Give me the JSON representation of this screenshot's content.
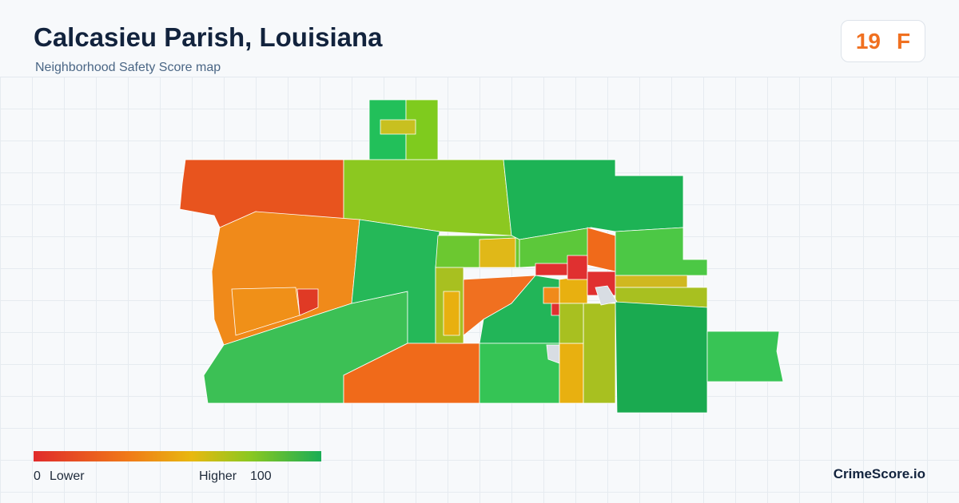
{
  "header": {
    "title": "Calcasieu Parish, Louisiana",
    "subtitle": "Neighborhood Safety Score map"
  },
  "score": {
    "value": 19,
    "grade": "F"
  },
  "legend": {
    "min": 0,
    "min_label": "Lower",
    "max_label": "Higher",
    "max": 100
  },
  "brand": "CrimeScore.io"
}
